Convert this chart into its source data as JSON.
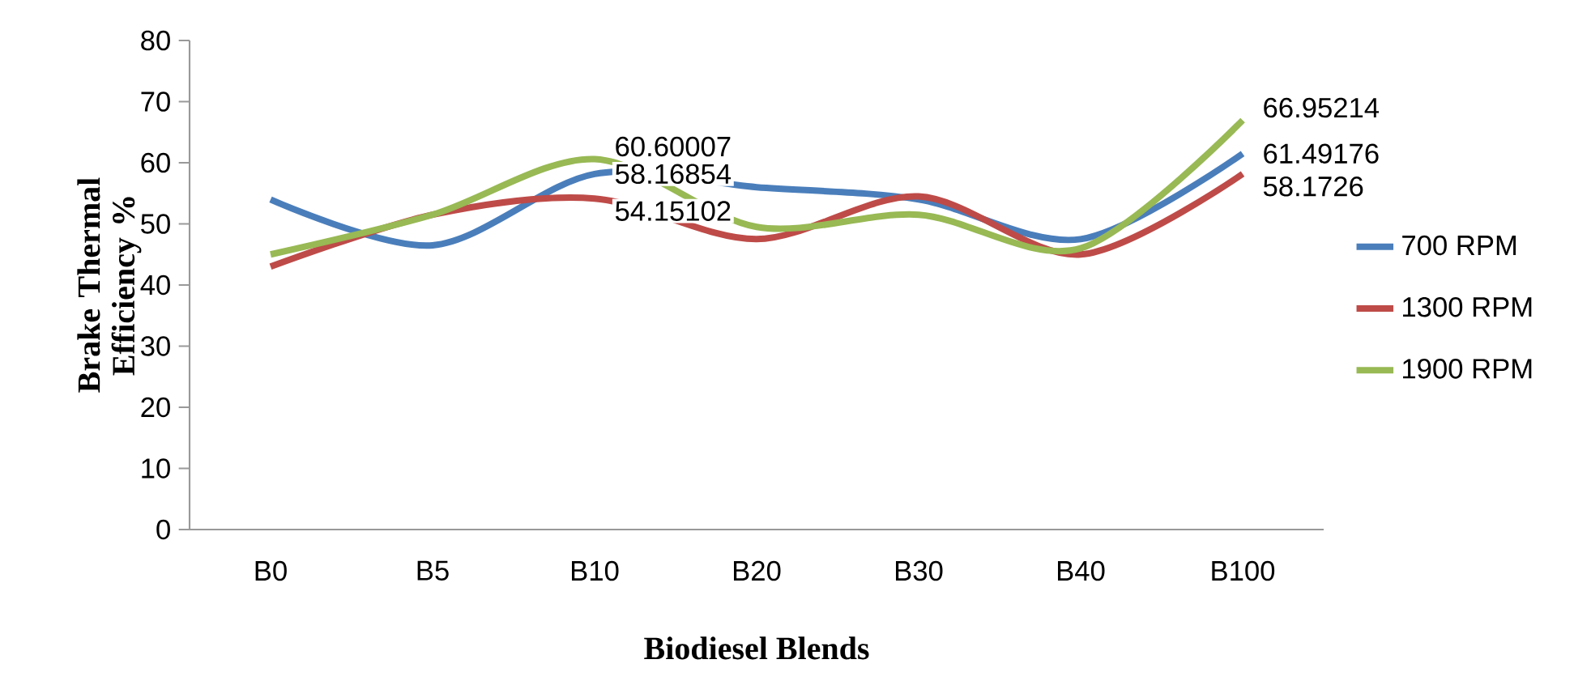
{
  "chart_data": {
    "type": "line",
    "xlabel": "Biodiesel Blends",
    "ylabel": "Brake Thermal Efficiency %",
    "categories": [
      "B0",
      "B5",
      "B10",
      "B20",
      "B30",
      "B40",
      "B100"
    ],
    "series": [
      {
        "name": "700 RPM",
        "color": "#4a7ebb",
        "values": [
          54,
          46.5,
          58.16854,
          56,
          54,
          47.5,
          61.49176
        ],
        "value_labels": [
          null,
          null,
          "58.16854",
          null,
          null,
          null,
          "61.49176"
        ]
      },
      {
        "name": "1300 RPM",
        "color": "#be4b48",
        "values": [
          43,
          51.5,
          54.15102,
          47.5,
          54.5,
          45,
          58.1726
        ],
        "value_labels": [
          null,
          null,
          "54.15102",
          null,
          null,
          null,
          "58.1726"
        ]
      },
      {
        "name": "1900 RPM",
        "color": "#98b954",
        "values": [
          45,
          51.5,
          60.60007,
          49.5,
          51.5,
          46,
          66.95214
        ],
        "value_labels": [
          null,
          null,
          "60.60007",
          null,
          null,
          null,
          "66.95214"
        ]
      }
    ],
    "ylim": [
      0,
      80
    ],
    "yticks": [
      0,
      10,
      20,
      30,
      40,
      50,
      60,
      70,
      80
    ],
    "grid": false,
    "legend": "right",
    "marker": "none",
    "line_style": "solid"
  }
}
